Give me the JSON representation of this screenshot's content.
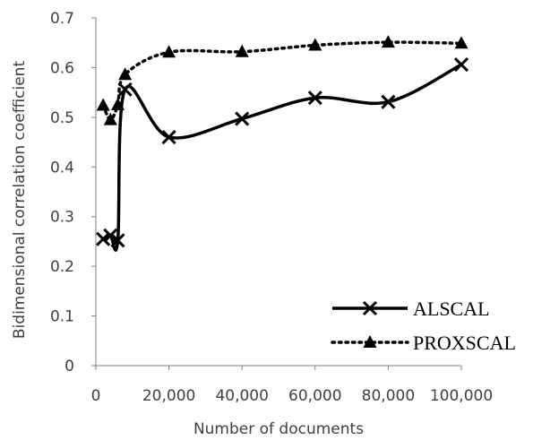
{
  "chart_data": {
    "type": "line",
    "title": "",
    "xlabel": "Number of documents",
    "ylabel": "Bidimensional correlation coefficient",
    "xlim": [
      0,
      100000
    ],
    "ylim": [
      0,
      0.7
    ],
    "x_ticks": [
      0,
      20000,
      40000,
      60000,
      80000,
      100000
    ],
    "x_tick_labels": [
      "0",
      "20,000",
      "40,000",
      "60,000",
      "80,000",
      "100,000"
    ],
    "y_ticks": [
      0,
      0.1,
      0.2,
      0.3,
      0.4,
      0.5,
      0.6,
      0.7
    ],
    "y_tick_labels": [
      "0",
      "0.1",
      "0.2",
      "0.3",
      "0.4",
      "0.5",
      "0.6",
      "0.7"
    ],
    "grid": false,
    "legend_position": "bottom-right",
    "series": [
      {
        "name": "ALSCAL",
        "marker": "x",
        "line_style": "solid",
        "color": "#000000",
        "x": [
          2000,
          4000,
          6000,
          8000,
          20000,
          40000,
          60000,
          80000,
          100000
        ],
        "y": [
          0.255,
          0.262,
          0.252,
          0.556,
          0.46,
          0.497,
          0.539,
          0.531,
          0.606
        ]
      },
      {
        "name": "PROXSCAL",
        "marker": "triangle",
        "line_style": "dotted",
        "color": "#000000",
        "x": [
          2000,
          4000,
          6000,
          8000,
          20000,
          40000,
          60000,
          80000,
          100000
        ],
        "y": [
          0.524,
          0.495,
          0.525,
          0.586,
          0.631,
          0.632,
          0.645,
          0.651,
          0.649
        ]
      }
    ]
  }
}
